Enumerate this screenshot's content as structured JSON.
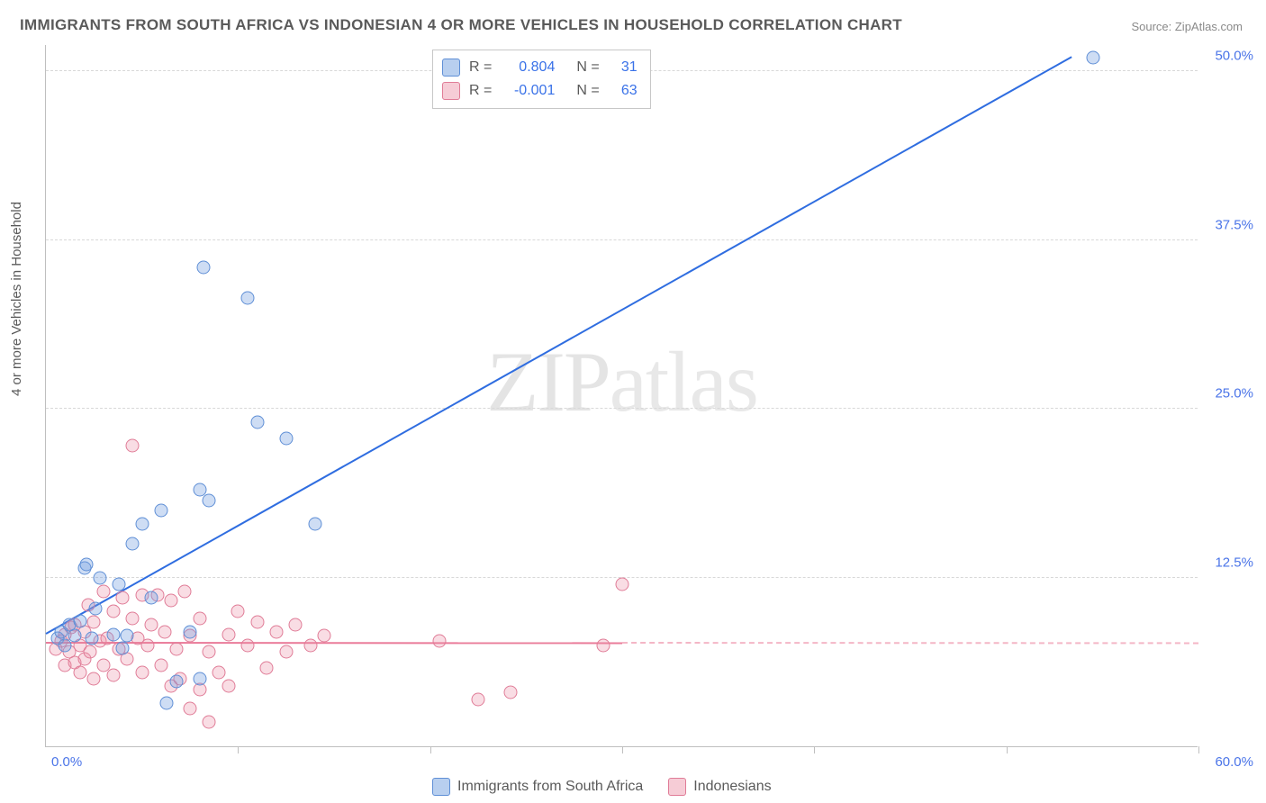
{
  "title": "IMMIGRANTS FROM SOUTH AFRICA VS INDONESIAN 4 OR MORE VEHICLES IN HOUSEHOLD CORRELATION CHART",
  "source_label": "Source: ZipAtlas.com",
  "ylabel": "4 or more Vehicles in Household",
  "watermark": "ZIPatlas",
  "chart": {
    "type": "scatter",
    "xlim": [
      0.0,
      60.0
    ],
    "ylim": [
      0.0,
      52.0
    ],
    "x_min_label": "0.0%",
    "x_max_label": "60.0%",
    "xtick_positions": [
      0,
      10,
      20,
      30,
      40,
      50,
      60
    ],
    "yticks": [
      {
        "value": 12.5,
        "label": "12.5%"
      },
      {
        "value": 25.0,
        "label": "25.0%"
      },
      {
        "value": 37.5,
        "label": "37.5%"
      },
      {
        "value": 50.0,
        "label": "50.0%"
      }
    ],
    "background_color": "#ffffff",
    "grid_color": "#d8d8d8",
    "axis_color": "#bfbfbf",
    "tick_label_color": "#4a74e8",
    "tick_fontsize": 15,
    "series": [
      {
        "key": "south_africa",
        "label": "Immigrants from South Africa",
        "color_fill": "rgba(114,159,223,0.35)",
        "color_stroke": "#5f8fd6",
        "marker": "circle",
        "marker_size": 15,
        "R": 0.804,
        "N": 31,
        "regression": {
          "intercept": 8.3,
          "slope": 0.8,
          "x_from": 0.0,
          "x_to": 53.4,
          "line_color": "#2f6de0",
          "line_width": 2,
          "style": "solid"
        },
        "points": [
          [
            0.6,
            8.0
          ],
          [
            0.8,
            8.5
          ],
          [
            1.0,
            7.5
          ],
          [
            1.2,
            9.0
          ],
          [
            1.5,
            8.2
          ],
          [
            1.8,
            9.3
          ],
          [
            2.0,
            13.2
          ],
          [
            2.1,
            13.5
          ],
          [
            2.4,
            8.0
          ],
          [
            2.6,
            10.2
          ],
          [
            2.8,
            12.5
          ],
          [
            3.5,
            8.3
          ],
          [
            3.8,
            12.0
          ],
          [
            4.2,
            8.2
          ],
          [
            4.5,
            15.0
          ],
          [
            5.0,
            16.5
          ],
          [
            5.5,
            11.0
          ],
          [
            6.0,
            17.5
          ],
          [
            6.3,
            3.2
          ],
          [
            6.8,
            4.8
          ],
          [
            7.5,
            8.5
          ],
          [
            8.0,
            19.0
          ],
          [
            8.2,
            35.5
          ],
          [
            8.5,
            18.2
          ],
          [
            10.5,
            33.2
          ],
          [
            11.0,
            24.0
          ],
          [
            12.5,
            22.8
          ],
          [
            14.0,
            16.5
          ],
          [
            8.0,
            5.0
          ],
          [
            4.0,
            7.3
          ],
          [
            54.5,
            51.0
          ]
        ]
      },
      {
        "key": "indonesian",
        "label": "Indonesians",
        "color_fill": "rgba(236,143,164,0.30)",
        "color_stroke": "#e07c97",
        "marker": "circle",
        "marker_size": 15,
        "R": -0.001,
        "N": 63,
        "regression": {
          "intercept": 7.6,
          "slope": -0.001,
          "x_from": 0.0,
          "x_to_solid": 30.0,
          "x_to_dashed": 60.0,
          "line_color": "#ea7c9a",
          "dashed_color": "#f4b6c6",
          "line_width": 2
        },
        "points": [
          [
            0.5,
            7.2
          ],
          [
            0.8,
            7.8
          ],
          [
            1.0,
            6.0
          ],
          [
            1.0,
            8.3
          ],
          [
            1.2,
            7.0
          ],
          [
            1.3,
            8.8
          ],
          [
            1.5,
            6.2
          ],
          [
            1.5,
            9.0
          ],
          [
            1.8,
            5.5
          ],
          [
            1.8,
            7.5
          ],
          [
            2.0,
            8.5
          ],
          [
            2.0,
            6.5
          ],
          [
            2.2,
            10.5
          ],
          [
            2.3,
            7.0
          ],
          [
            2.5,
            5.0
          ],
          [
            2.5,
            9.2
          ],
          [
            2.8,
            7.8
          ],
          [
            3.0,
            6.0
          ],
          [
            3.0,
            11.5
          ],
          [
            3.2,
            8.0
          ],
          [
            3.5,
            5.3
          ],
          [
            3.5,
            10.0
          ],
          [
            3.8,
            7.2
          ],
          [
            4.0,
            11.0
          ],
          [
            4.2,
            6.5
          ],
          [
            4.5,
            9.5
          ],
          [
            4.5,
            22.3
          ],
          [
            4.8,
            8.0
          ],
          [
            5.0,
            5.5
          ],
          [
            5.0,
            11.2
          ],
          [
            5.3,
            7.5
          ],
          [
            5.5,
            9.0
          ],
          [
            5.8,
            11.2
          ],
          [
            6.0,
            6.0
          ],
          [
            6.2,
            8.5
          ],
          [
            6.5,
            4.5
          ],
          [
            6.5,
            10.8
          ],
          [
            6.8,
            7.2
          ],
          [
            7.0,
            5.0
          ],
          [
            7.2,
            11.5
          ],
          [
            7.5,
            8.2
          ],
          [
            7.5,
            2.8
          ],
          [
            8.0,
            9.5
          ],
          [
            8.0,
            4.2
          ],
          [
            8.5,
            7.0
          ],
          [
            8.5,
            1.8
          ],
          [
            9.0,
            5.5
          ],
          [
            9.5,
            8.3
          ],
          [
            9.5,
            4.5
          ],
          [
            10.0,
            10.0
          ],
          [
            10.5,
            7.5
          ],
          [
            11.0,
            9.2
          ],
          [
            11.5,
            5.8
          ],
          [
            12.0,
            8.5
          ],
          [
            12.5,
            7.0
          ],
          [
            13.0,
            9.0
          ],
          [
            13.8,
            7.5
          ],
          [
            14.5,
            8.2
          ],
          [
            20.5,
            7.8
          ],
          [
            22.5,
            3.5
          ],
          [
            24.2,
            4.0
          ],
          [
            29.0,
            7.5
          ],
          [
            30.0,
            12.0
          ]
        ]
      }
    ]
  },
  "legend_top": {
    "rows": [
      {
        "swatch": "blue",
        "r_label": "R =",
        "r_val": "0.804",
        "n_label": "N =",
        "n_val": "31"
      },
      {
        "swatch": "pink",
        "r_label": "R =",
        "r_val": "-0.001",
        "n_label": "N =",
        "n_val": "63"
      }
    ]
  },
  "legend_bottom": {
    "items": [
      {
        "swatch": "blue",
        "label": "Immigrants from South Africa"
      },
      {
        "swatch": "pink",
        "label": "Indonesians"
      }
    ]
  }
}
